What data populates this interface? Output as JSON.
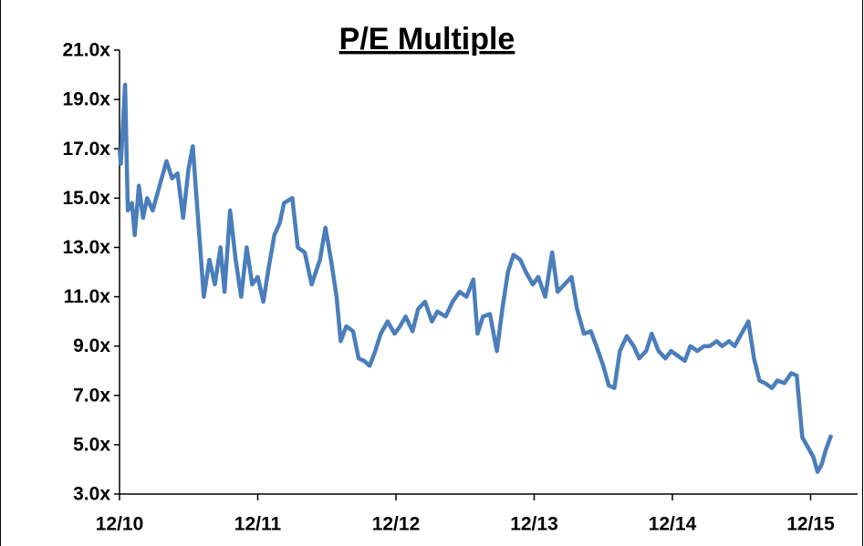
{
  "chart_data": {
    "type": "line",
    "title": "P/E Multiple",
    "x": [
      2010.92,
      2010.93,
      2010.96,
      2010.98,
      2011.01,
      2011.03,
      2011.06,
      2011.09,
      2011.12,
      2011.16,
      2011.21,
      2011.26,
      2011.3,
      2011.34,
      2011.38,
      2011.42,
      2011.45,
      2011.49,
      2011.53,
      2011.57,
      2011.61,
      2011.65,
      2011.68,
      2011.72,
      2011.76,
      2011.8,
      2011.84,
      2011.88,
      2011.92,
      2011.96,
      2012.0,
      2012.04,
      2012.08,
      2012.11,
      2012.17,
      2012.21,
      2012.26,
      2012.31,
      2012.37,
      2012.41,
      2012.45,
      2012.49,
      2012.52,
      2012.56,
      2012.61,
      2012.65,
      2012.69,
      2012.73,
      2012.77,
      2012.81,
      2012.86,
      2012.91,
      2012.95,
      2012.99,
      2013.04,
      2013.08,
      2013.13,
      2013.18,
      2013.22,
      2013.28,
      2013.33,
      2013.38,
      2013.43,
      2013.48,
      2013.51,
      2013.55,
      2013.6,
      2013.65,
      2013.69,
      2013.73,
      2013.77,
      2013.82,
      2013.86,
      2013.91,
      2013.95,
      2014.0,
      2014.05,
      2014.09,
      2014.14,
      2014.19,
      2014.23,
      2014.28,
      2014.33,
      2014.37,
      2014.42,
      2014.46,
      2014.5,
      2014.54,
      2014.59,
      2014.64,
      2014.68,
      2014.73,
      2014.77,
      2014.82,
      2014.87,
      2014.91,
      2014.96,
      2015.01,
      2015.05,
      2015.1,
      2015.15,
      2015.19,
      2015.24,
      2015.28,
      2015.33,
      2015.37,
      2015.42,
      2015.47,
      2015.51,
      2015.55,
      2015.59,
      2015.64,
      2015.68,
      2015.73,
      2015.78,
      2015.82,
      2015.86,
      2015.9,
      2015.94,
      2015.97,
      2016.0,
      2016.03,
      2016.07
    ],
    "series": [
      {
        "color": "#4a7ebb",
        "values": [
          17.0,
          16.4,
          19.6,
          14.5,
          14.8,
          13.5,
          15.5,
          14.2,
          15.0,
          14.5,
          15.5,
          16.5,
          15.8,
          16.0,
          14.2,
          16.2,
          17.1,
          14.0,
          11.0,
          12.5,
          11.5,
          13.0,
          11.2,
          14.5,
          12.5,
          11.0,
          13.0,
          11.5,
          11.8,
          10.8,
          12.2,
          13.5,
          14.0,
          14.8,
          15.0,
          13.0,
          12.8,
          11.5,
          12.5,
          13.8,
          12.5,
          11.0,
          9.2,
          9.8,
          9.6,
          8.5,
          8.4,
          8.2,
          8.8,
          9.5,
          10.0,
          9.5,
          9.8,
          10.2,
          9.6,
          10.5,
          10.8,
          10.0,
          10.4,
          10.2,
          10.8,
          11.2,
          11.0,
          11.7,
          9.5,
          10.2,
          10.3,
          8.8,
          10.5,
          12.0,
          12.7,
          12.5,
          12.0,
          11.5,
          11.8,
          11.0,
          12.8,
          11.2,
          11.5,
          11.8,
          10.5,
          9.5,
          9.6,
          9.0,
          8.2,
          7.4,
          7.3,
          8.8,
          9.4,
          9.0,
          8.5,
          8.8,
          9.5,
          8.8,
          8.5,
          8.8,
          8.6,
          8.4,
          9.0,
          8.8,
          9.0,
          9.0,
          9.2,
          9.0,
          9.2,
          9.0,
          9.5,
          10.0,
          8.5,
          7.6,
          7.5,
          7.3,
          7.6,
          7.5,
          7.9,
          7.8,
          5.3,
          4.9,
          4.5,
          3.9,
          4.2,
          4.8,
          5.4
        ]
      }
    ],
    "xlim": [
      2010.92,
      2016.26
    ],
    "xticks": [
      {
        "value": 2010.92,
        "label": "12/10"
      },
      {
        "value": 2011.92,
        "label": "12/11"
      },
      {
        "value": 2012.92,
        "label": "12/12"
      },
      {
        "value": 2013.92,
        "label": "12/13"
      },
      {
        "value": 2014.92,
        "label": "12/14"
      },
      {
        "value": 2015.92,
        "label": "12/15"
      }
    ],
    "ylim": [
      3,
      21
    ],
    "yticks": [
      {
        "value": 3,
        "label": "3.0x"
      },
      {
        "value": 5,
        "label": "5.0x"
      },
      {
        "value": 7,
        "label": "7.0x"
      },
      {
        "value": 9,
        "label": "9.0x"
      },
      {
        "value": 11,
        "label": "11.0x"
      },
      {
        "value": 13,
        "label": "13.0x"
      },
      {
        "value": 15,
        "label": "15.0x"
      },
      {
        "value": 17,
        "label": "17.0x"
      },
      {
        "value": 19,
        "label": "19.0x"
      },
      {
        "value": 21,
        "label": "21.0x"
      }
    ]
  }
}
